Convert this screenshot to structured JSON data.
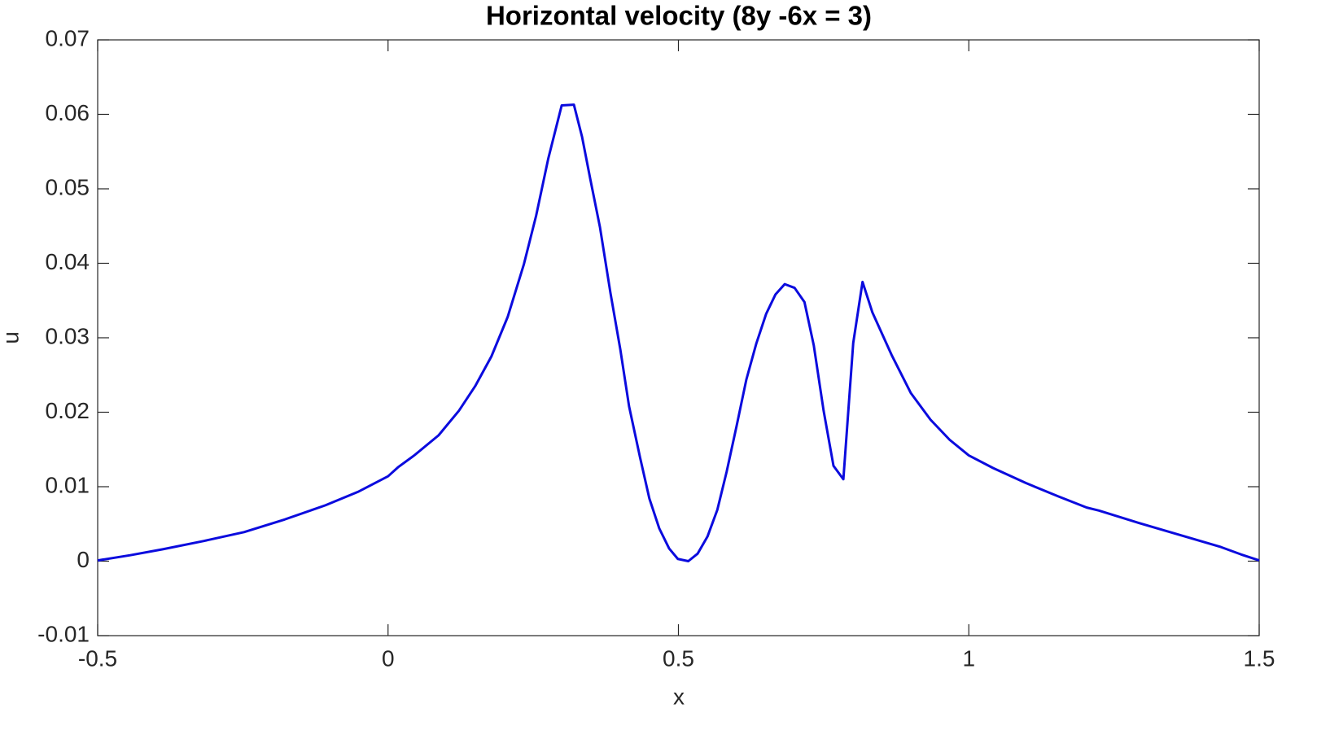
{
  "chart_data": {
    "type": "line",
    "title": "Horizontal velocity (8y -6x = 3)",
    "x_label": "x",
    "y_label": "u",
    "xlim": [
      -0.5,
      1.5
    ],
    "xticks": [
      -0.5,
      0,
      0.5,
      1,
      1.5
    ],
    "ylim": [
      -0.01,
      0.07
    ],
    "yticks": [
      -0.01,
      0,
      0.01,
      0.02,
      0.03,
      0.04,
      0.05,
      0.06,
      0.07
    ],
    "grid": false,
    "series": [
      {
        "name": "u",
        "color": "#0b0bde",
        "x": [
          -0.5,
          -0.444,
          -0.388,
          -0.318,
          -0.248,
          -0.178,
          -0.108,
          -0.052,
          0,
          0.017,
          0.045,
          0.087,
          0.122,
          0.15,
          0.178,
          0.206,
          0.234,
          0.255,
          0.276,
          0.299,
          0.32,
          0.334,
          0.348,
          0.365,
          0.383,
          0.4,
          0.415,
          0.434,
          0.45,
          0.467,
          0.484,
          0.499,
          0.517,
          0.533,
          0.55,
          0.567,
          0.583,
          0.6,
          0.617,
          0.634,
          0.651,
          0.667,
          0.683,
          0.7,
          0.717,
          0.733,
          0.75,
          0.767,
          0.784,
          0.801,
          0.817,
          0.834,
          0.867,
          0.9,
          0.934,
          0.967,
          1.0,
          1.042,
          1.098,
          1.154,
          1.203,
          1.224,
          1.294,
          1.364,
          1.434,
          1.469,
          1.5
        ],
        "values": [
          0.0001,
          0.0008,
          0.0016,
          0.0027,
          0.0039,
          0.0056,
          0.0075,
          0.0093,
          0.0114,
          0.0126,
          0.0142,
          0.0169,
          0.0202,
          0.0235,
          0.0275,
          0.0328,
          0.0399,
          0.0464,
          0.0541,
          0.0612,
          0.0613,
          0.057,
          0.0514,
          0.0448,
          0.036,
          0.0284,
          0.0208,
          0.0139,
          0.0084,
          0.0044,
          0.0017,
          0.0003,
          0.0,
          0.001,
          0.0033,
          0.0069,
          0.012,
          0.0181,
          0.0244,
          0.0292,
          0.0332,
          0.0358,
          0.0372,
          0.0367,
          0.0348,
          0.029,
          0.0202,
          0.0128,
          0.011,
          0.0293,
          0.0375,
          0.0334,
          0.0277,
          0.0226,
          0.019,
          0.0163,
          0.0142,
          0.0125,
          0.0105,
          0.0087,
          0.0072,
          0.0068,
          0.0051,
          0.0035,
          0.0019,
          0.0009,
          0.0001
        ]
      }
    ]
  }
}
